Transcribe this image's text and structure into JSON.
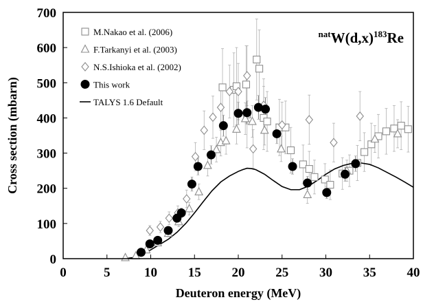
{
  "chart_data": {
    "type": "scatter",
    "title": "",
    "annotation": {
      "pre": "nat",
      "main": "W(d,x)",
      "sup": "183",
      "post": "Re"
    },
    "xlabel": "Deuteron energy (MeV)",
    "ylabel": "Cross section (mbarn)",
    "xlim": [
      0,
      40
    ],
    "ylim": [
      0,
      700
    ],
    "xticks": [
      "0",
      "5",
      "10",
      "15",
      "20",
      "25",
      "30",
      "35",
      "40"
    ],
    "yticks": [
      "0",
      "100",
      "200",
      "300",
      "400",
      "500",
      "600",
      "700"
    ],
    "grid": false,
    "legend_position": "top-left",
    "series": [
      {
        "name": "M.Nakao et al. (2006)",
        "marker": "square",
        "color": "#8c8c8c",
        "points": [
          [
            18.2,
            487,
            110
          ],
          [
            19.5,
            480,
            105
          ],
          [
            19.8,
            490,
            110
          ],
          [
            20.9,
            495,
            110
          ],
          [
            21.0,
            410,
            95
          ],
          [
            22.1,
            566,
            115
          ],
          [
            22.4,
            540,
            110
          ],
          [
            22.9,
            400,
            90
          ],
          [
            23.3,
            390,
            85
          ],
          [
            24.7,
            373,
            80
          ],
          [
            25.4,
            373,
            75
          ],
          [
            26.0,
            308,
            65
          ],
          [
            27.4,
            268,
            55
          ],
          [
            28.1,
            255,
            50
          ],
          [
            28.7,
            232,
            48
          ],
          [
            29.9,
            225,
            45
          ],
          [
            30.5,
            210,
            42
          ],
          [
            31.9,
            242,
            45
          ],
          [
            32.7,
            250,
            45
          ],
          [
            33.6,
            272,
            50
          ],
          [
            34.4,
            303,
            55
          ],
          [
            35.2,
            325,
            60
          ],
          [
            36.0,
            348,
            62
          ],
          [
            36.9,
            362,
            65
          ],
          [
            37.8,
            370,
            65
          ],
          [
            38.6,
            378,
            68
          ],
          [
            39.4,
            368,
            65
          ]
        ]
      },
      {
        "name": "F.Tarkanyi et al. (2003)",
        "marker": "triangle",
        "color": "#8c8c8c",
        "points": [
          [
            7.1,
            3,
            3
          ],
          [
            8.3,
            8,
            4
          ],
          [
            9.5,
            25,
            6
          ],
          [
            10.8,
            45,
            8
          ],
          [
            12.0,
            72,
            10
          ],
          [
            13.2,
            105,
            14
          ],
          [
            14.4,
            142,
            18
          ],
          [
            15.5,
            190,
            22
          ],
          [
            16.5,
            265,
            30
          ],
          [
            17.5,
            310,
            35
          ],
          [
            18.0,
            330,
            38
          ],
          [
            18.6,
            335,
            38
          ],
          [
            19.8,
            368,
            42
          ],
          [
            20.8,
            398,
            45
          ],
          [
            21.6,
            390,
            45
          ],
          [
            23.0,
            365,
            42
          ],
          [
            24.9,
            312,
            36
          ],
          [
            27.9,
            182,
            25
          ],
          [
            32.4,
            250,
            30
          ],
          [
            35.6,
            340,
            38
          ],
          [
            38.2,
            355,
            40
          ]
        ]
      },
      {
        "name": "N.S.Ishioka et al. (2002)",
        "marker": "diamond",
        "color": "#8c8c8c",
        "points": [
          [
            9.9,
            80,
            14
          ],
          [
            11.1,
            90,
            16
          ],
          [
            12.1,
            115,
            18
          ],
          [
            13.1,
            130,
            20
          ],
          [
            14.1,
            170,
            25
          ],
          [
            15.1,
            290,
            40
          ],
          [
            16.1,
            365,
            55
          ],
          [
            17.1,
            402,
            60
          ],
          [
            18.0,
            430,
            65
          ],
          [
            19.0,
            475,
            75
          ],
          [
            20.0,
            475,
            80
          ],
          [
            21.0,
            520,
            85
          ],
          [
            21.7,
            312,
            55
          ],
          [
            22.9,
            436,
            75
          ],
          [
            25.0,
            380,
            65
          ],
          [
            28.1,
            395,
            70
          ],
          [
            30.9,
            330,
            55
          ],
          [
            33.9,
            405,
            70
          ]
        ]
      },
      {
        "name": "This work",
        "marker": "circle",
        "color": "#000000",
        "points": [
          [
            8.9,
            18,
            5
          ],
          [
            9.9,
            42,
            7
          ],
          [
            10.8,
            52,
            8
          ],
          [
            12.0,
            80,
            10
          ],
          [
            13.0,
            115,
            12
          ],
          [
            13.5,
            130,
            14
          ],
          [
            14.7,
            212,
            20
          ],
          [
            15.4,
            262,
            24
          ],
          [
            16.9,
            295,
            26
          ],
          [
            18.3,
            378,
            30
          ],
          [
            20.0,
            413,
            32
          ],
          [
            21.0,
            415,
            33
          ],
          [
            22.3,
            430,
            34
          ],
          [
            23.1,
            425,
            33
          ],
          [
            24.4,
            355,
            28
          ],
          [
            26.2,
            262,
            22
          ],
          [
            27.9,
            215,
            19
          ],
          [
            30.1,
            188,
            17
          ],
          [
            32.2,
            240,
            20
          ],
          [
            33.4,
            270,
            22
          ]
        ]
      },
      {
        "name": "TALYS 1.6 Default",
        "marker": "line",
        "color": "#000000",
        "x": [
          7,
          8,
          9,
          10,
          11,
          12,
          13,
          14,
          15,
          16,
          17,
          18,
          19,
          20,
          20.5,
          21,
          21.5,
          22,
          23,
          24,
          25,
          26,
          27,
          28,
          29,
          30,
          31,
          32,
          33,
          34,
          35,
          36,
          37,
          38,
          39,
          40
        ],
        "y": [
          0,
          3,
          12,
          25,
          40,
          55,
          75,
          100,
          130,
          162,
          193,
          218,
          235,
          248,
          253,
          257,
          256,
          253,
          240,
          222,
          205,
          196,
          196,
          206,
          222,
          240,
          255,
          265,
          271,
          272,
          268,
          258,
          245,
          232,
          218,
          203
        ]
      }
    ]
  }
}
